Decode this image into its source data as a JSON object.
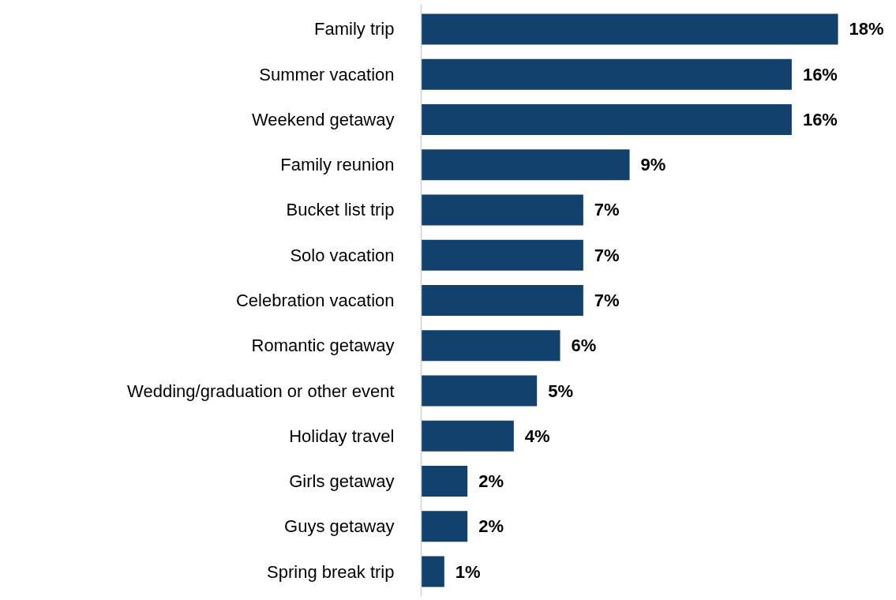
{
  "chart_data": {
    "type": "bar",
    "orientation": "horizontal",
    "categories": [
      "Family trip",
      "Summer vacation",
      "Weekend getaway",
      "Family reunion",
      "Bucket list trip",
      "Solo vacation",
      "Celebration vacation",
      "Romantic getaway",
      "Wedding/graduation or other event",
      "Holiday travel",
      "Girls getaway",
      "Guys getaway",
      "Spring break trip"
    ],
    "values": [
      18,
      16,
      16,
      9,
      7,
      7,
      7,
      6,
      5,
      4,
      2,
      2,
      1
    ],
    "value_labels": [
      "18%",
      "16%",
      "16%",
      "9%",
      "7%",
      "7%",
      "7%",
      "6%",
      "5%",
      "4%",
      "2%",
      "2%",
      "1%"
    ],
    "color": "#12416e",
    "tick_labels": "y",
    "grid": false
  }
}
